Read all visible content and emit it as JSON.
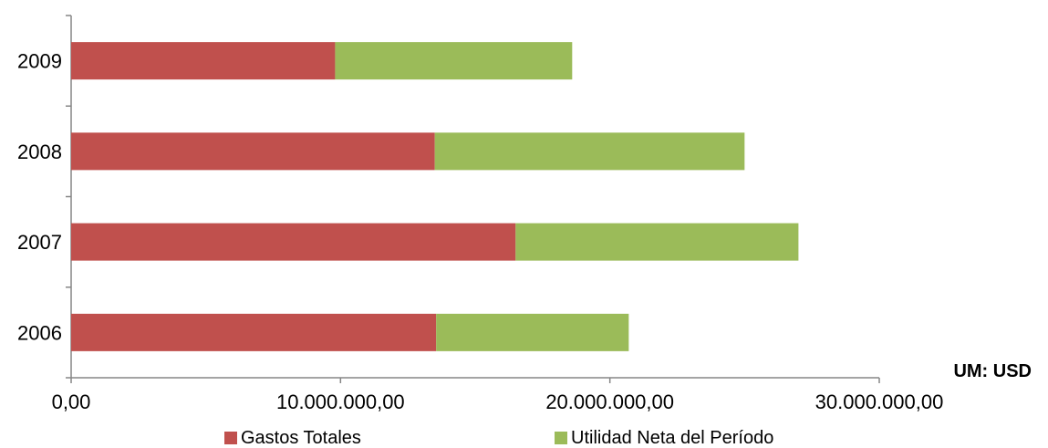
{
  "chart_data": {
    "type": "bar",
    "orientation": "horizontal",
    "stacked": true,
    "categories": [
      "2009",
      "2008",
      "2007",
      "2006"
    ],
    "series": [
      {
        "name": "Gastos Totales",
        "values": [
          9800000,
          13500000,
          16500000,
          13550000
        ],
        "color": "#c0504d"
      },
      {
        "name": "Utilidad Neta del Período",
        "values": [
          8800000,
          11500000,
          10500000,
          7150000
        ],
        "color": "#9bbb59"
      }
    ],
    "xlim": [
      0,
      30000000
    ],
    "xticks": [
      0,
      10000000,
      20000000,
      30000000
    ],
    "xtick_labels": [
      "0,00",
      "10.000.000,00",
      "20.000.000,00",
      "30.000.000,00"
    ],
    "unit_label": "UM: USD",
    "grid": false,
    "legend_position": "bottom"
  }
}
